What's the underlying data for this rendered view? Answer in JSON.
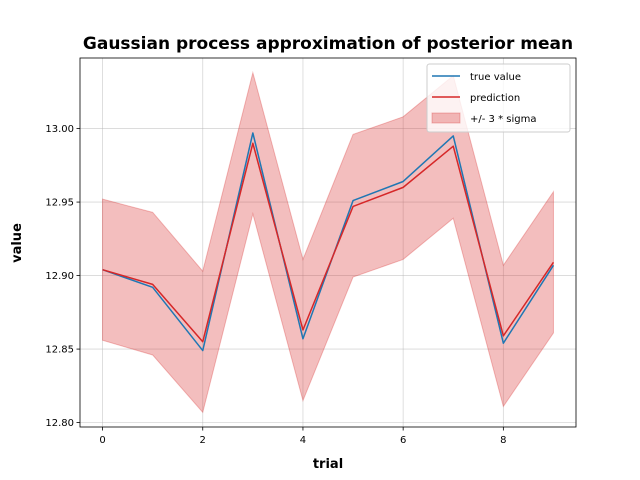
{
  "chart_data": {
    "type": "line",
    "title": "Gaussian process approximation of posterior mean",
    "xlabel": "trial",
    "ylabel": "value",
    "x": [
      0,
      1,
      2,
      3,
      4,
      5,
      6,
      7,
      8,
      9
    ],
    "xlim": [
      -0.45,
      9.45
    ],
    "ylim": [
      12.797,
      13.048
    ],
    "xticks": [
      0,
      2,
      4,
      6,
      8
    ],
    "xtick_labels": [
      "0",
      "2",
      "4",
      "6",
      "8"
    ],
    "yticks": [
      12.8,
      12.85,
      12.9,
      12.95,
      13.0
    ],
    "ytick_labels": [
      "12.80",
      "12.85",
      "12.90",
      "12.95",
      "13.00"
    ],
    "grid": true,
    "legend_position": "top-right",
    "series": [
      {
        "name": "true value",
        "color": "#1f77b4",
        "values": [
          12.904,
          12.892,
          12.849,
          12.997,
          12.857,
          12.951,
          12.964,
          12.995,
          12.854,
          12.907
        ]
      },
      {
        "name": "prediction",
        "color": "#d62728",
        "values": [
          12.904,
          12.894,
          12.855,
          12.99,
          12.863,
          12.947,
          12.96,
          12.988,
          12.859,
          12.909
        ]
      }
    ],
    "band": {
      "name": "+/- 3 * sigma",
      "color": "#d62728",
      "lower": [
        12.856,
        12.846,
        12.807,
        12.942,
        12.815,
        12.899,
        12.911,
        12.939,
        12.811,
        12.861
      ],
      "upper": [
        12.952,
        12.943,
        12.903,
        13.038,
        12.911,
        12.996,
        13.008,
        13.036,
        12.907,
        12.957
      ]
    }
  }
}
